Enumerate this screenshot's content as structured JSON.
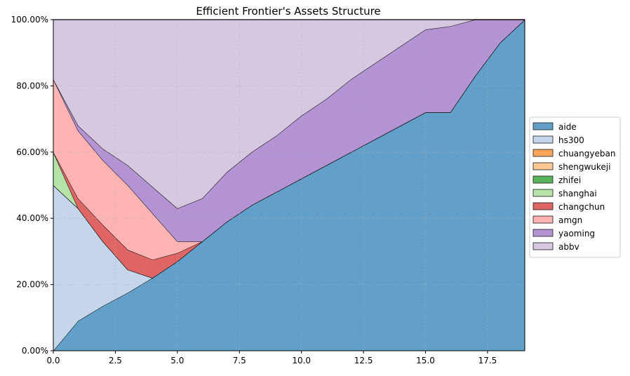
{
  "chart_data": {
    "type": "area",
    "title": "Efficient Frontier's Assets Structure",
    "xlabel": "",
    "ylabel": "",
    "xlim": [
      0,
      19
    ],
    "ylim": [
      0,
      100
    ],
    "x_ticks": [
      "0.0",
      "2.5",
      "5.0",
      "7.5",
      "10.0",
      "12.5",
      "15.0",
      "17.5"
    ],
    "y_ticks": [
      "0.00%",
      "20.00%",
      "40.00%",
      "60.00%",
      "80.00%",
      "100.00%"
    ],
    "grid": true,
    "stacked": true,
    "legend_position": "right",
    "x": [
      0,
      1,
      2,
      3,
      4,
      5,
      6,
      7,
      8,
      9,
      10,
      11,
      12,
      13,
      14,
      15,
      16,
      17,
      18,
      19
    ],
    "series": [
      {
        "name": "aide",
        "color": "#62a0ca",
        "values": [
          0,
          9,
          13.5,
          17.5,
          22,
          27,
          33,
          39,
          44,
          48,
          52,
          56,
          60,
          64,
          68,
          72,
          72,
          83,
          93,
          100
        ]
      },
      {
        "name": "hs300",
        "color": "#c5d6ec",
        "values": [
          50,
          34,
          19.5,
          7,
          0,
          0,
          0,
          0,
          0,
          0,
          0,
          0,
          0,
          0,
          0,
          0,
          0,
          0,
          0,
          0
        ]
      },
      {
        "name": "chuangyeban",
        "color": "#f9a65a",
        "values": [
          0,
          0,
          0,
          0,
          0,
          0,
          0,
          0,
          0,
          0,
          0,
          0,
          0,
          0,
          0,
          0,
          0,
          0,
          0,
          0
        ]
      },
      {
        "name": "shengwukeji",
        "color": "#fbc895",
        "values": [
          0,
          0,
          0,
          0,
          0,
          0,
          0,
          0,
          0,
          0,
          0,
          0,
          0,
          0,
          0,
          0,
          0,
          0,
          0,
          0
        ]
      },
      {
        "name": "zhifei",
        "color": "#5ab55a",
        "values": [
          0,
          0,
          0,
          0,
          0,
          0,
          0,
          0,
          0,
          0,
          0,
          0,
          0,
          0,
          0,
          0,
          0,
          0,
          0,
          0
        ]
      },
      {
        "name": "shanghai",
        "color": "#b5e3a8",
        "values": [
          10,
          0,
          0,
          0,
          0,
          0,
          0,
          0,
          0,
          0,
          0,
          0,
          0,
          0,
          0,
          0,
          0,
          0,
          0,
          0
        ]
      },
      {
        "name": "changchun",
        "color": "#e06666",
        "values": [
          0,
          3,
          5,
          6,
          5.5,
          2.5,
          0,
          0,
          0,
          0,
          0,
          0,
          0,
          0,
          0,
          0,
          0,
          0,
          0,
          0
        ]
      },
      {
        "name": "amgn",
        "color": "#ffb3b3",
        "values": [
          22,
          20.5,
          19.5,
          19.5,
          14,
          3.5,
          0,
          0,
          0,
          0,
          0,
          0,
          0,
          0,
          0,
          0,
          0,
          0,
          0,
          0
        ]
      },
      {
        "name": "yaoming",
        "color": "#b393d3",
        "values": [
          0,
          1.5,
          3.5,
          6,
          8,
          10,
          13,
          15,
          16,
          17,
          19,
          20,
          22,
          23,
          24,
          25,
          26,
          17,
          7,
          0
        ]
      },
      {
        "name": "abbv",
        "color": "#d6c8e0",
        "values": [
          18,
          32,
          39,
          44,
          50.5,
          57,
          54,
          46,
          40,
          35,
          29,
          24,
          18,
          13,
          8,
          3,
          2,
          0,
          0,
          0
        ]
      }
    ]
  }
}
